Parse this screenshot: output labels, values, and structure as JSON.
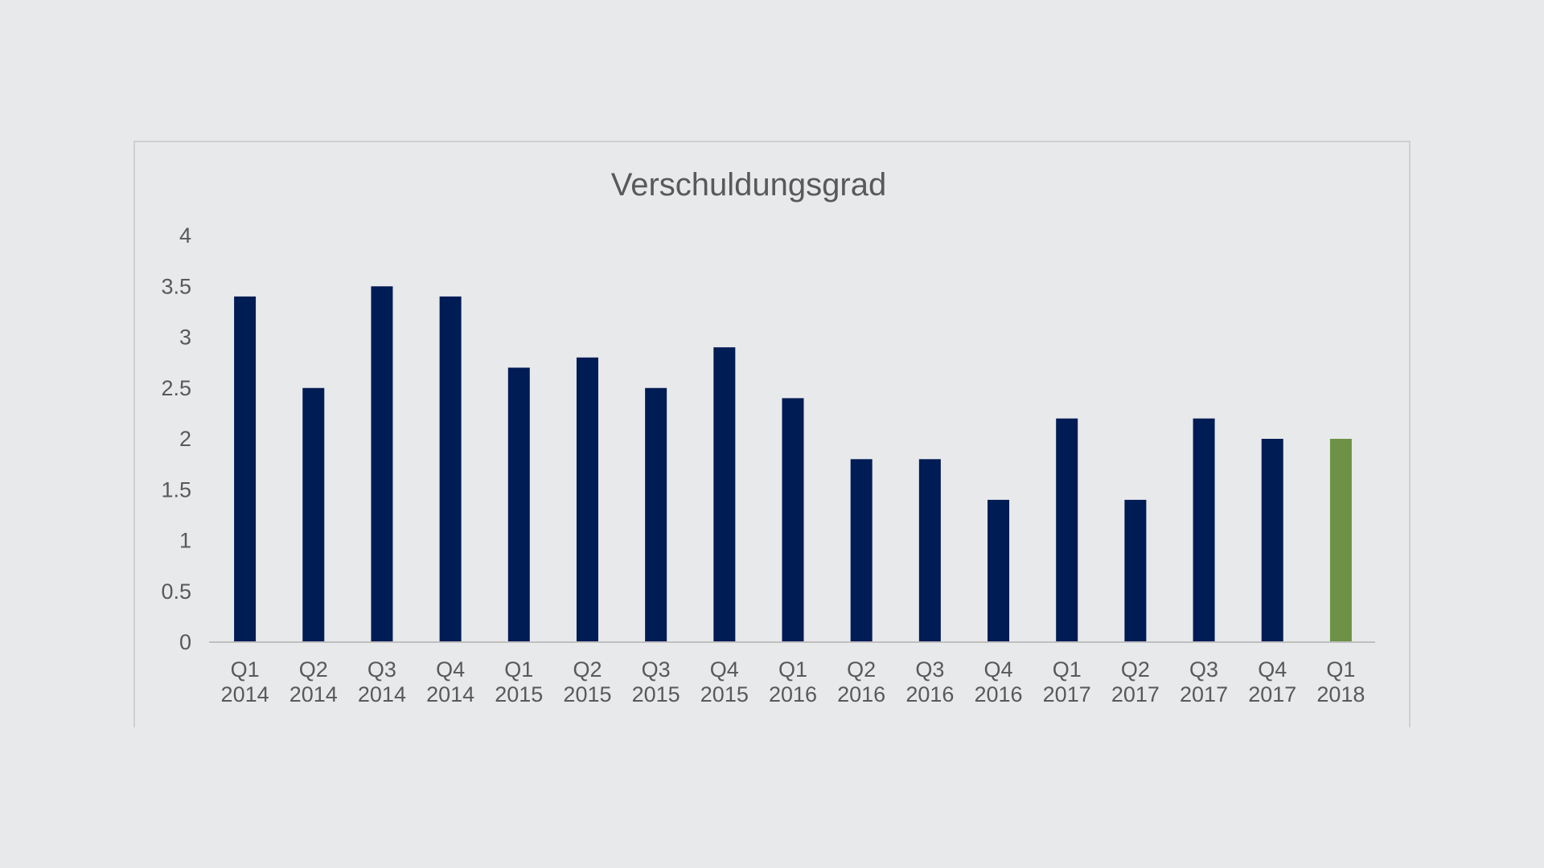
{
  "chart_data": {
    "type": "bar",
    "title": "Verschuldungsgrad",
    "categories": [
      [
        "Q1",
        "2014"
      ],
      [
        "Q2",
        "2014"
      ],
      [
        "Q3",
        "2014"
      ],
      [
        "Q4",
        "2014"
      ],
      [
        "Q1",
        "2015"
      ],
      [
        "Q2",
        "2015"
      ],
      [
        "Q3",
        "2015"
      ],
      [
        "Q4",
        "2015"
      ],
      [
        "Q1",
        "2016"
      ],
      [
        "Q2",
        "2016"
      ],
      [
        "Q3",
        "2016"
      ],
      [
        "Q4",
        "2016"
      ],
      [
        "Q1",
        "2017"
      ],
      [
        "Q2",
        "2017"
      ],
      [
        "Q3",
        "2017"
      ],
      [
        "Q4",
        "2017"
      ],
      [
        "Q1",
        "2018"
      ]
    ],
    "values": [
      3.4,
      2.5,
      3.5,
      3.4,
      2.7,
      2.8,
      2.5,
      2.9,
      2.4,
      1.8,
      1.8,
      1.4,
      2.2,
      1.4,
      2.2,
      2.0,
      2.0
    ],
    "highlight_index": 16,
    "ylim": [
      0,
      4
    ],
    "yticks": [
      "0",
      "0.5",
      "1",
      "1.5",
      "2",
      "2.5",
      "3",
      "3.5",
      "4"
    ],
    "xlabel": "",
    "ylabel": "",
    "grid": false,
    "legend": "none",
    "colors": {
      "bar": "#001c55",
      "highlight": "#6d9246",
      "axis": "#bfbfbf",
      "text": "#595959"
    }
  }
}
